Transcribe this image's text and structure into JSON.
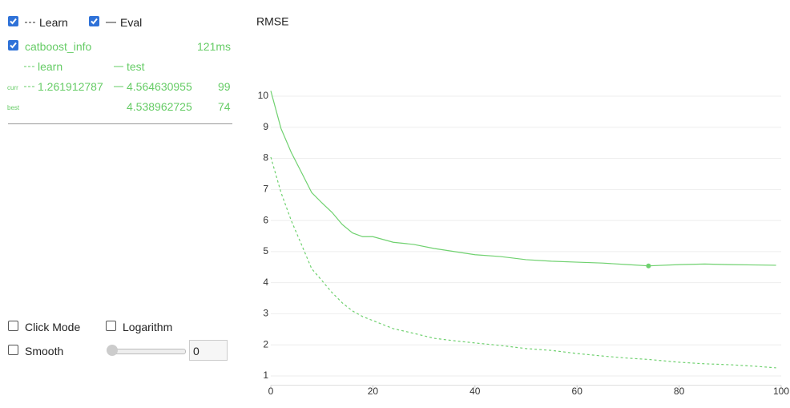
{
  "controls": {
    "learn": "Learn",
    "eval": "Eval",
    "click_mode": "Click Mode",
    "logarithm": "Logarithm",
    "smooth": "Smooth",
    "smooth_value": 0
  },
  "info": {
    "name": "catboost_info",
    "time": "121ms",
    "curr_label": "curr",
    "best_label": "best",
    "curr_learn": 1.261912787,
    "curr_test": 4.564630955,
    "curr_iteration": 99,
    "best_test": 4.538962725,
    "best_iteration": 74
  },
  "chart_data": {
    "type": "line",
    "title": "RMSE",
    "x": [
      0,
      2,
      4,
      6,
      8,
      10,
      12,
      14,
      16,
      18,
      20,
      24,
      28,
      32,
      36,
      40,
      45,
      50,
      55,
      60,
      65,
      70,
      74,
      80,
      85,
      90,
      95,
      99
    ],
    "series": [
      {
        "name": "learn",
        "color": "#6fd16f",
        "dashed": true,
        "values": [
          8.04,
          6.9,
          6.0,
          5.23,
          4.45,
          4.07,
          3.68,
          3.35,
          3.09,
          2.91,
          2.78,
          2.52,
          2.37,
          2.21,
          2.13,
          2.06,
          1.98,
          1.88,
          1.82,
          1.72,
          1.64,
          1.57,
          1.53,
          1.44,
          1.39,
          1.36,
          1.31,
          1.26
        ]
      },
      {
        "name": "test",
        "color": "#6fd16f",
        "dashed": false,
        "values": [
          10.17,
          8.96,
          8.19,
          7.55,
          6.9,
          6.57,
          6.26,
          5.87,
          5.6,
          5.48,
          5.48,
          5.3,
          5.23,
          5.1,
          5.0,
          4.9,
          4.84,
          4.74,
          4.69,
          4.66,
          4.63,
          4.58,
          4.54,
          4.58,
          4.6,
          4.58,
          4.57,
          4.56
        ]
      }
    ],
    "xlim": [
      0,
      100
    ],
    "xticks": [
      0,
      20,
      40,
      60,
      80,
      100
    ],
    "ylim": [
      0.7,
      10.5
    ],
    "yticks": [
      1,
      2,
      3,
      4,
      5,
      6,
      7,
      8,
      9,
      10
    ],
    "grid": true
  }
}
